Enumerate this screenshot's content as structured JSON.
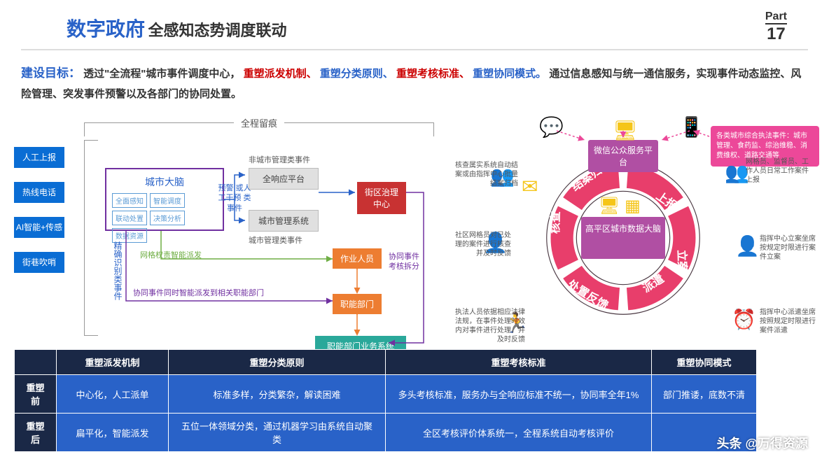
{
  "header": {
    "title_main": "数字政府",
    "title_sub": "全感知态势调度联动",
    "part_label": "Part",
    "part_num": "17"
  },
  "goal": {
    "label": "建设目标：",
    "t1": "透过\"全流程\"城市事件调度中心，",
    "r1": "重塑派发机制、",
    "r2": "重塑分类原则、",
    "r3": "重塑考核标准、",
    "r4": "重塑协同模式。",
    "t2": "通过信息感知与统一通信服务，实现事件动态监控、风险管理、突发事件预警以及各部门的协同处置。"
  },
  "left": {
    "bracket_top": "全程留痕",
    "inputs": [
      "人工上报",
      "热线电话",
      "AI智能+传感",
      "街巷吹哨"
    ],
    "brain": {
      "title": "城市大脑",
      "tags": [
        "全面感知",
        "智能调度",
        "联动处置",
        "决策分析",
        "数据资源"
      ]
    },
    "vtext_left": "精确识别类事件",
    "non_city_event": "非城市管理类事件",
    "resp_platform": "全响应平台",
    "city_mgmt_sys": "城市管理系统",
    "city_event": "城市管理类事件",
    "prewarning": "预警 或人工干预 类事件",
    "green_line": "网格权责智能派发",
    "purple_line": "协同事件同时智能派发到相关职能部门",
    "district": "街区治理中心",
    "worker": "作业人员",
    "dept": "职能部门",
    "dept_sys": "职能部门业务系统",
    "split_label": "协同事件考核拆分"
  },
  "right": {
    "wechat": "微信公众服务平台",
    "center": "高平区城市数据大脑",
    "callout": "各类城市综合执法事件：城市管理、食药监、综治维稳、消费维权、道路交通等",
    "segments": [
      "上报",
      "立案",
      "派遣",
      "处置反馈",
      "核查",
      "结案归档"
    ],
    "colors": {
      "seg": "#e83e6b",
      "ring_bg": "#4a3842"
    },
    "notes": {
      "n1": "核查属实系统自动结案或由指挥中心批量结案归档",
      "n2": "网格员、监督员、工作人员日常工作案件上报",
      "n3": "指挥中心立案坐席按规定时限进行案件立案",
      "n4": "社区网格员对已处理的案件进行核查并及时反馈",
      "n5": "指挥中心派遣坐席按照规定时限进行案件派遣",
      "n6": "执法人员依据相应法律法规，在事件处理时效内对事件进行处理，并及时反馈"
    }
  },
  "table": {
    "headers": [
      "",
      "重塑派发机制",
      "重塑分类原则",
      "重塑考核标准",
      "重塑协同模式"
    ],
    "rows": [
      {
        "label": "重塑前",
        "cells": [
          "中心化，人工派单",
          "标准多样，分类繁杂，解读困难",
          "多头考核标准，服务办与全响应标准不统一，协同率全年1%",
          "部门推诿，底数不清"
        ]
      },
      {
        "label": "重塑后",
        "cells": [
          "扁平化，智能派发",
          "五位一体领域分类，通过机器学习由系统自动聚类",
          "全区考核评价体系统一，全程系统自动考核评价",
          ""
        ]
      }
    ]
  },
  "watermark": "头条 @万得资源"
}
